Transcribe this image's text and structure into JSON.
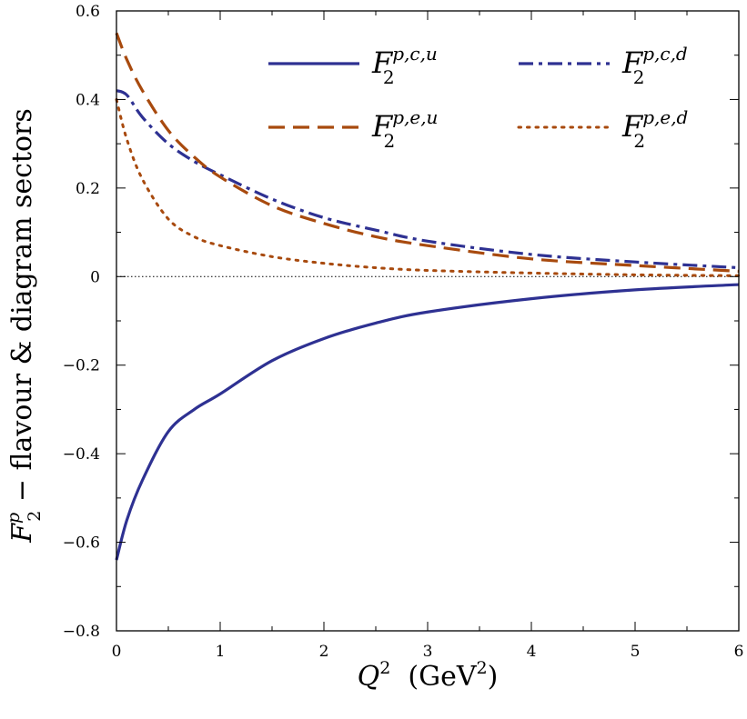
{
  "chart_data": {
    "type": "line",
    "xlabel": {
      "main": "Q",
      "sup": "2",
      "unit_open": "  (GeV",
      "unit_sup": "2",
      "unit_close": ")"
    },
    "ylabel": {
      "main": "F",
      "sub": "2",
      "sup": "p",
      "rest": " − flavour & diagram sectors"
    },
    "xlim": [
      0,
      6
    ],
    "ylim": [
      -0.8,
      0.6
    ],
    "xticks": [
      "0",
      "1",
      "2",
      "3",
      "4",
      "5",
      "6"
    ],
    "yticks": [
      "−0.8",
      "−0.6",
      "−0.4",
      "−0.2",
      "0",
      "0.2",
      "0.4",
      "0.6"
    ],
    "x": [
      0,
      0.1,
      0.25,
      0.5,
      0.75,
      1,
      1.5,
      2,
      2.5,
      3,
      4,
      5,
      6
    ],
    "zero_line": true,
    "legend_placement": "top-right",
    "series": [
      {
        "name": "F_2^{p,c,u}",
        "label": {
          "main": "F",
          "sub": "2",
          "sup": "p,c,u"
        },
        "style": "solid",
        "color": "#2e3192",
        "values": [
          -0.64,
          -0.55,
          -0.46,
          -0.35,
          -0.3,
          -0.265,
          -0.19,
          -0.14,
          -0.105,
          -0.08,
          -0.05,
          -0.03,
          -0.018
        ]
      },
      {
        "name": "F_2^{p,c,d}",
        "label": {
          "main": "F",
          "sub": "2",
          "sup": "p,c,d"
        },
        "style": "dashdot",
        "color": "#2e3192",
        "values": [
          0.42,
          0.41,
          0.36,
          0.3,
          0.26,
          0.23,
          0.175,
          0.133,
          0.105,
          0.08,
          0.05,
          0.033,
          0.02
        ]
      },
      {
        "name": "F_2^{p,e,u}",
        "label": {
          "main": "F",
          "sub": "2",
          "sup": "p,e,u"
        },
        "style": "dashed",
        "color": "#a84a0e",
        "values": [
          0.55,
          0.49,
          0.42,
          0.33,
          0.27,
          0.225,
          0.16,
          0.12,
          0.09,
          0.07,
          0.04,
          0.025,
          0.012
        ]
      },
      {
        "name": "F_2^{p,e,d}",
        "label": {
          "main": "F",
          "sub": "2",
          "sup": "p,e,d"
        },
        "style": "dotted",
        "color": "#a84a0e",
        "values": [
          0.4,
          0.31,
          0.22,
          0.13,
          0.09,
          0.07,
          0.045,
          0.03,
          0.02,
          0.014,
          0.008,
          0.004,
          0.002
        ]
      }
    ],
    "legend_order": [
      0,
      1,
      2,
      3
    ]
  }
}
